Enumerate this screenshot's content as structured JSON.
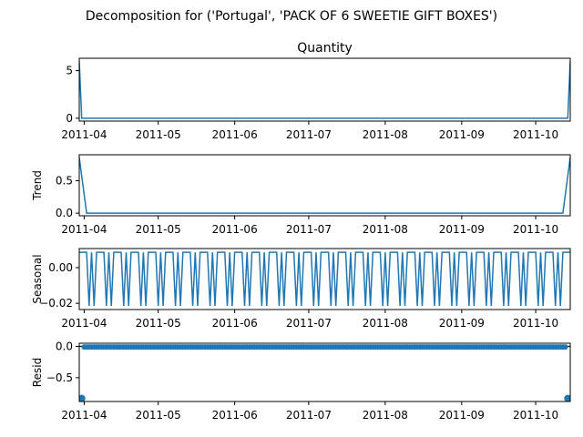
{
  "figure_title": "Decomposition for ('Portugal', 'PACK OF 6 SWEETIE GIFT BOXES')",
  "colors": {
    "series": "#1f77b4",
    "axes": "#000000",
    "background": "#ffffff"
  },
  "chart_data": [
    {
      "type": "line",
      "title": "Quantity",
      "ylabel": "",
      "x_range": [
        "2011-03-30",
        "2011-10-15"
      ],
      "x_ticks": [
        "2011-04",
        "2011-05",
        "2011-06",
        "2011-07",
        "2011-08",
        "2011-09",
        "2011-10"
      ],
      "ylim": [
        -0.3,
        6.3
      ],
      "y_ticks": [
        0,
        5
      ],
      "y_tick_labels": [
        "0",
        "5"
      ],
      "series": [
        {
          "x": [
            "2011-03-30",
            "2011-03-31",
            "2011-10-14",
            "2011-10-15"
          ],
          "values": [
            6,
            0,
            0,
            6
          ]
        }
      ]
    },
    {
      "type": "line",
      "title": "",
      "ylabel": "Trend",
      "x_range": [
        "2011-03-30",
        "2011-10-15"
      ],
      "x_ticks": [
        "2011-04",
        "2011-05",
        "2011-06",
        "2011-07",
        "2011-08",
        "2011-09",
        "2011-10"
      ],
      "ylim": [
        -0.04,
        0.9
      ],
      "y_ticks": [
        0.0,
        0.5
      ],
      "y_tick_labels": [
        "0.0",
        "0.5"
      ],
      "series": [
        {
          "x": [
            "2011-03-30",
            "2011-04-02",
            "2011-10-12",
            "2011-10-15"
          ],
          "values": [
            0.86,
            0.0,
            0.0,
            0.86
          ]
        }
      ]
    },
    {
      "type": "line",
      "title": "",
      "ylabel": "Seasonal",
      "x_range": [
        "2011-03-30",
        "2011-10-15"
      ],
      "x_ticks": [
        "2011-04",
        "2011-05",
        "2011-06",
        "2011-07",
        "2011-08",
        "2011-09",
        "2011-10"
      ],
      "ylim": [
        -0.0235,
        0.0107
      ],
      "y_ticks": [
        0.0,
        -0.02
      ],
      "y_tick_labels": [
        "0.00",
        "−0.02"
      ],
      "period_days": 7,
      "pattern": [
        0.0086,
        0.0086,
        0.0086,
        0.0086,
        -0.0215,
        0.0086,
        -0.0215
      ]
    },
    {
      "type": "scatter",
      "title": "",
      "ylabel": "Resid",
      "x_range": [
        "2011-03-30",
        "2011-10-15"
      ],
      "x_ticks": [
        "2011-04",
        "2011-05",
        "2011-06",
        "2011-07",
        "2011-08",
        "2011-09",
        "2011-10"
      ],
      "ylim": [
        -0.88,
        0.05
      ],
      "y_ticks": [
        0.0,
        -0.5
      ],
      "y_tick_labels": [
        "0.0",
        "−0.5"
      ],
      "baseline": 0,
      "typical_value": -0.01,
      "points": [
        {
          "x": "2011-03-31",
          "y": -0.83
        },
        {
          "x": "2011-10-14",
          "y": -0.83
        }
      ]
    }
  ]
}
